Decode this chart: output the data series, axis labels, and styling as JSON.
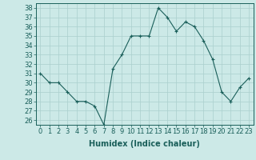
{
  "x": [
    0,
    1,
    2,
    3,
    4,
    5,
    6,
    7,
    8,
    9,
    10,
    11,
    12,
    13,
    14,
    15,
    16,
    17,
    18,
    19,
    20,
    21,
    22,
    23
  ],
  "y": [
    31,
    30,
    30,
    29,
    28,
    28,
    27.5,
    25.5,
    31.5,
    33,
    35,
    35,
    35,
    38,
    37,
    35.5,
    36.5,
    36,
    34.5,
    32.5,
    29,
    28,
    29.5,
    30.5
  ],
  "xlabel": "Humidex (Indice chaleur)",
  "ylim": [
    25.5,
    38.5
  ],
  "xlim": [
    -0.5,
    23.5
  ],
  "yticks": [
    26,
    27,
    28,
    29,
    30,
    31,
    32,
    33,
    34,
    35,
    36,
    37,
    38
  ],
  "xticks": [
    0,
    1,
    2,
    3,
    4,
    5,
    6,
    7,
    8,
    9,
    10,
    11,
    12,
    13,
    14,
    15,
    16,
    17,
    18,
    19,
    20,
    21,
    22,
    23
  ],
  "line_color": "#1a5f5a",
  "marker": "+",
  "bg_color": "#cce9e7",
  "grid_color": "#aacfcd",
  "tick_fontsize": 6.0,
  "xlabel_fontsize": 7.0
}
